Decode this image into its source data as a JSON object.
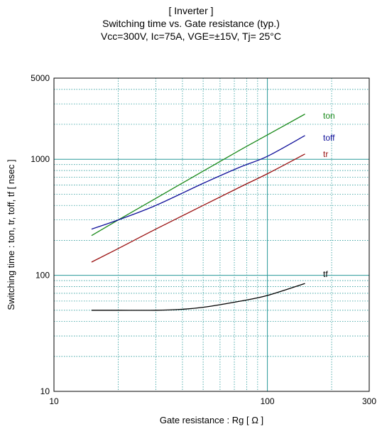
{
  "chart_data": {
    "type": "line",
    "title": "[ Inverter ]",
    "subtitle": "Switching time  vs.  Gate resistance  (typ.)",
    "conditions": "Vcc=300V, Ic=75A, VGE=±15V, Tj= 25°C",
    "xlabel": "Gate resistance  :  Rg  [ Ω ]",
    "ylabel": "Switching time  :  ton, tr, toff, tf  [ nsec ]",
    "x_scale": "log",
    "y_scale": "log",
    "xlim": [
      10,
      300
    ],
    "ylim": [
      10,
      5000
    ],
    "x_ticks": [
      10,
      100,
      300
    ],
    "x_tick_labels": [
      "10",
      "100",
      "300"
    ],
    "y_ticks": [
      10,
      100,
      1000,
      5000
    ],
    "y_tick_labels": [
      "10",
      "100",
      "1000",
      "5000"
    ],
    "grid": true,
    "series": [
      {
        "name": "ton",
        "color": "#1a8a1a",
        "x": [
          15,
          20,
          30,
          50,
          75,
          100,
          150
        ],
        "y": [
          220,
          300,
          460,
          790,
          1210,
          1620,
          2450
        ]
      },
      {
        "name": "toff",
        "color": "#10109a",
        "x": [
          15,
          20,
          30,
          50,
          75,
          100,
          150
        ],
        "y": [
          250,
          300,
          400,
          620,
          860,
          1060,
          1600
        ]
      },
      {
        "name": "tr",
        "color": "#9a1010",
        "x": [
          15,
          20,
          30,
          50,
          75,
          100,
          150
        ],
        "y": [
          130,
          170,
          250,
          400,
          580,
          750,
          1110
        ]
      },
      {
        "name": "tf",
        "color": "#000000",
        "x": [
          15,
          20,
          30,
          40,
          50,
          75,
          100,
          150
        ],
        "y": [
          50,
          50,
          50,
          51,
          53,
          60,
          67,
          85
        ]
      }
    ]
  }
}
